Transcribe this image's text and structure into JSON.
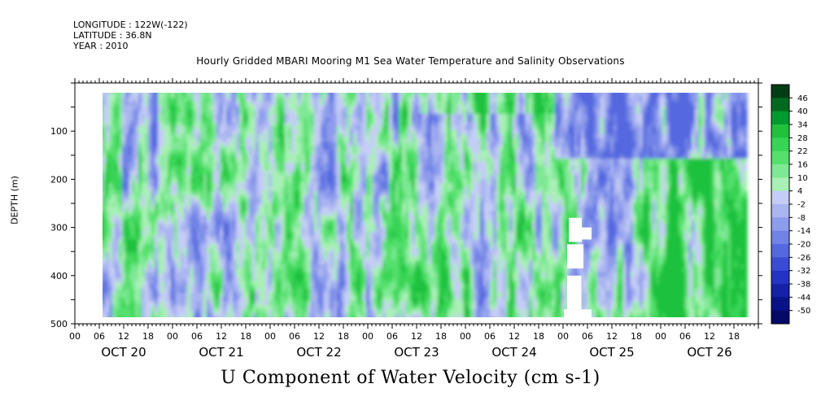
{
  "header": {
    "longitude": "LONGITUDE : 122W(-122)",
    "latitude": "LATITUDE : 36.8N",
    "year": "YEAR : 2010"
  },
  "chart_data": {
    "type": "heatmap",
    "title": "Hourly Gridded MBARI Mooring M1 Sea Water Temperature and Salinity Observations",
    "variable_title": "U Component of Water Velocity (cm s-1)",
    "ylabel": "DEPTH (m)",
    "y_reversed": true,
    "ylim": [
      0,
      500
    ],
    "y_ticks": [
      100,
      200,
      300,
      400,
      500
    ],
    "x_hour_ticks": [
      "00",
      "06",
      "12",
      "18",
      "00",
      "06",
      "12",
      "18",
      "00",
      "06",
      "12",
      "18",
      "00",
      "06",
      "12",
      "18",
      "00",
      "06",
      "12",
      "18",
      "00",
      "06",
      "12",
      "18",
      "00",
      "06",
      "12",
      "18"
    ],
    "x_day_labels": [
      "OCT 20",
      "OCT 21",
      "OCT 22",
      "OCT 23",
      "OCT 24",
      "OCT 25",
      "OCT 26"
    ],
    "data_extent": {
      "hours_start": 6,
      "hours_end": 164,
      "depth_top": 25,
      "depth_bottom": 485
    },
    "colorbar": {
      "levels": [
        "46",
        "40",
        "34",
        "28",
        "22",
        "16",
        "10",
        "4",
        "-2",
        "-8",
        "-14",
        "-20",
        "-26",
        "-32",
        "-38",
        "-44",
        "-50"
      ],
      "palette": [
        "#003d14",
        "#00691f",
        "#009a2e",
        "#1fc13d",
        "#37d455",
        "#55e06d",
        "#7fe895",
        "#a8f0b5",
        "#c4cdf5",
        "#aab5f1",
        "#8e9cec",
        "#7183e6",
        "#5568df",
        "#3b4cd4",
        "#2433c4",
        "#1421a8",
        "#0a1288",
        "#040a66"
      ]
    }
  }
}
